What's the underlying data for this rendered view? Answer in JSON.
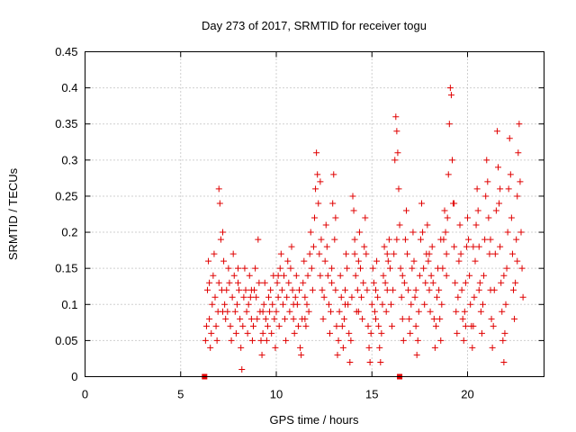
{
  "chart_data": {
    "type": "scatter",
    "title": "Day 273 of 2017, SRMTID for receiver togu",
    "xlabel": "GPS time / hours",
    "ylabel": "SRMTID / TECUs",
    "xlim": [
      0,
      24
    ],
    "ylim": [
      0,
      0.45
    ],
    "xticks": [
      "0",
      "5",
      "10",
      "15",
      "20"
    ],
    "xtick_values": [
      0,
      5,
      10,
      15,
      20
    ],
    "yticks": [
      "0",
      "0.05",
      "0.1",
      "0.15",
      "0.2",
      "0.25",
      "0.3",
      "0.35",
      "0.4",
      "0.45"
    ],
    "ytick_values": [
      0,
      0.05,
      0.1,
      0.15,
      0.2,
      0.25,
      0.3,
      0.35,
      0.4,
      0.45
    ],
    "grid": true,
    "series_color": "#e00000",
    "baseline_markers": [
      6.25,
      16.45
    ],
    "points": [
      [
        6.3,
        0.05
      ],
      [
        6.35,
        0.07
      ],
      [
        6.4,
        0.12
      ],
      [
        6.45,
        0.16
      ],
      [
        6.5,
        0.08
      ],
      [
        6.55,
        0.04
      ],
      [
        6.6,
        0.06
      ],
      [
        6.65,
        0.1
      ],
      [
        6.7,
        0.14
      ],
      [
        6.75,
        0.17
      ],
      [
        6.8,
        0.11
      ],
      [
        6.85,
        0.07
      ],
      [
        6.9,
        0.05
      ],
      [
        6.95,
        0.09
      ],
      [
        7.0,
        0.13
      ],
      [
        7.0,
        0.26
      ],
      [
        7.05,
        0.24
      ],
      [
        7.1,
        0.19
      ],
      [
        7.15,
        0.12
      ],
      [
        7.2,
        0.2
      ],
      [
        7.25,
        0.16
      ],
      [
        7.3,
        0.1
      ],
      [
        7.35,
        0.08
      ],
      [
        7.4,
        0.12
      ],
      [
        7.45,
        0.09
      ],
      [
        7.5,
        0.15
      ],
      [
        7.55,
        0.13
      ],
      [
        7.6,
        0.07
      ],
      [
        7.65,
        0.05
      ],
      [
        7.7,
        0.11
      ],
      [
        7.75,
        0.17
      ],
      [
        7.8,
        0.14
      ],
      [
        7.85,
        0.09
      ],
      [
        7.9,
        0.06
      ],
      [
        7.95,
        0.1
      ],
      [
        8.0,
        0.13
      ],
      [
        8.05,
        0.12
      ],
      [
        8.1,
        0.08
      ],
      [
        8.15,
        0.04
      ],
      [
        8.2,
        0.01
      ],
      [
        8.25,
        0.07
      ],
      [
        8.3,
        0.11
      ],
      [
        8.35,
        0.15
      ],
      [
        8.4,
        0.12
      ],
      [
        8.45,
        0.09
      ],
      [
        8.5,
        0.06
      ],
      [
        8.55,
        0.1
      ],
      [
        8.6,
        0.14
      ],
      [
        8.65,
        0.11
      ],
      [
        8.7,
        0.08
      ],
      [
        8.75,
        0.05
      ],
      [
        8.8,
        0.07
      ],
      [
        8.85,
        0.12
      ],
      [
        8.9,
        0.15
      ],
      [
        8.95,
        0.11
      ],
      [
        9.0,
        0.08
      ],
      [
        9.05,
        0.19
      ],
      [
        9.1,
        0.13
      ],
      [
        9.15,
        0.09
      ],
      [
        9.2,
        0.05
      ],
      [
        9.25,
        0.03
      ],
      [
        9.3,
        0.06
      ],
      [
        9.35,
        0.1
      ],
      [
        9.4,
        0.13
      ],
      [
        9.45,
        0.08
      ],
      [
        9.5,
        0.05
      ],
      [
        9.55,
        0.07
      ],
      [
        9.6,
        0.11
      ],
      [
        9.65,
        0.09
      ],
      [
        9.7,
        0.12
      ],
      [
        9.75,
        0.06
      ],
      [
        9.8,
        0.1
      ],
      [
        9.85,
        0.14
      ],
      [
        9.9,
        0.08
      ],
      [
        9.95,
        0.04
      ],
      [
        10.0,
        0.09
      ],
      [
        10.05,
        0.13
      ],
      [
        10.1,
        0.11
      ],
      [
        10.15,
        0.07
      ],
      [
        10.2,
        0.15
      ],
      [
        10.25,
        0.17
      ],
      [
        10.3,
        0.12
      ],
      [
        10.35,
        0.1
      ],
      [
        10.4,
        0.14
      ],
      [
        10.45,
        0.08
      ],
      [
        10.5,
        0.05
      ],
      [
        10.55,
        0.11
      ],
      [
        10.6,
        0.16
      ],
      [
        10.65,
        0.13
      ],
      [
        10.7,
        0.09
      ],
      [
        10.75,
        0.15
      ],
      [
        10.8,
        0.18
      ],
      [
        10.85,
        0.12
      ],
      [
        10.9,
        0.08
      ],
      [
        10.95,
        0.06
      ],
      [
        11.0,
        0.11
      ],
      [
        11.05,
        0.14
      ],
      [
        11.1,
        0.1
      ],
      [
        11.15,
        0.07
      ],
      [
        11.2,
        0.12
      ],
      [
        11.25,
        0.04
      ],
      [
        11.3,
        0.03
      ],
      [
        11.35,
        0.08
      ],
      [
        11.4,
        0.13
      ],
      [
        11.45,
        0.16
      ],
      [
        11.5,
        0.11
      ],
      [
        11.55,
        0.07
      ],
      [
        11.6,
        0.1
      ],
      [
        11.65,
        0.14
      ],
      [
        11.7,
        0.09
      ],
      [
        11.75,
        0.17
      ],
      [
        11.8,
        0.2
      ],
      [
        11.85,
        0.15
      ],
      [
        11.9,
        0.12
      ],
      [
        11.95,
        0.18
      ],
      [
        12.0,
        0.22
      ],
      [
        12.05,
        0.26
      ],
      [
        12.1,
        0.31
      ],
      [
        12.15,
        0.28
      ],
      [
        12.2,
        0.24
      ],
      [
        12.25,
        0.17
      ],
      [
        12.3,
        0.14
      ],
      [
        12.35,
        0.19
      ],
      [
        12.4,
        0.12
      ],
      [
        12.45,
        0.08
      ],
      [
        12.5,
        0.11
      ],
      [
        12.55,
        0.16
      ],
      [
        12.6,
        0.21
      ],
      [
        12.65,
        0.18
      ],
      [
        12.7,
        0.14
      ],
      [
        12.75,
        0.1
      ],
      [
        12.8,
        0.06
      ],
      [
        12.85,
        0.09
      ],
      [
        12.9,
        0.13
      ],
      [
        12.95,
        0.24
      ],
      [
        13.0,
        0.28
      ],
      [
        13.05,
        0.19
      ],
      [
        13.1,
        0.12
      ],
      [
        13.15,
        0.07
      ],
      [
        13.2,
        0.03
      ],
      [
        13.25,
        0.05
      ],
      [
        13.3,
        0.09
      ],
      [
        13.35,
        0.14
      ],
      [
        13.4,
        0.11
      ],
      [
        13.45,
        0.07
      ],
      [
        13.5,
        0.04
      ],
      [
        13.55,
        0.08
      ],
      [
        13.6,
        0.12
      ],
      [
        13.65,
        0.17
      ],
      [
        13.7,
        0.15
      ],
      [
        13.75,
        0.1
      ],
      [
        13.8,
        0.06
      ],
      [
        13.85,
        0.02
      ],
      [
        13.9,
        0.05
      ],
      [
        13.95,
        0.11
      ],
      [
        14.0,
        0.25
      ],
      [
        14.05,
        0.23
      ],
      [
        14.1,
        0.19
      ],
      [
        14.15,
        0.14
      ],
      [
        14.2,
        0.09
      ],
      [
        14.25,
        0.12
      ],
      [
        14.3,
        0.16
      ],
      [
        14.35,
        0.2
      ],
      [
        14.4,
        0.15
      ],
      [
        14.45,
        0.11
      ],
      [
        14.5,
        0.08
      ],
      [
        14.55,
        0.13
      ],
      [
        14.6,
        0.18
      ],
      [
        14.65,
        0.22
      ],
      [
        14.7,
        0.17
      ],
      [
        14.75,
        0.12
      ],
      [
        14.8,
        0.07
      ],
      [
        14.85,
        0.04
      ],
      [
        14.9,
        0.02
      ],
      [
        14.95,
        0.06
      ],
      [
        15.0,
        0.1
      ],
      [
        15.05,
        0.15
      ],
      [
        15.1,
        0.13
      ],
      [
        15.15,
        0.09
      ],
      [
        15.2,
        0.12
      ],
      [
        15.25,
        0.16
      ],
      [
        15.3,
        0.11
      ],
      [
        15.35,
        0.07
      ],
      [
        15.4,
        0.04
      ],
      [
        15.45,
        0.02
      ],
      [
        15.5,
        0.06
      ],
      [
        15.55,
        0.1
      ],
      [
        15.6,
        0.14
      ],
      [
        15.65,
        0.18
      ],
      [
        15.7,
        0.13
      ],
      [
        15.75,
        0.09
      ],
      [
        15.8,
        0.12
      ],
      [
        15.85,
        0.16
      ],
      [
        15.9,
        0.19
      ],
      [
        15.95,
        0.15
      ],
      [
        16.0,
        0.1
      ],
      [
        16.05,
        0.07
      ],
      [
        16.1,
        0.12
      ],
      [
        16.15,
        0.17
      ],
      [
        16.2,
        0.3
      ],
      [
        16.25,
        0.36
      ],
      [
        16.3,
        0.34
      ],
      [
        16.35,
        0.31
      ],
      [
        16.4,
        0.26
      ],
      [
        16.45,
        0.21
      ],
      [
        16.5,
        0.15
      ],
      [
        16.55,
        0.11
      ],
      [
        16.6,
        0.08
      ],
      [
        16.65,
        0.05
      ],
      [
        16.7,
        0.13
      ],
      [
        16.75,
        0.19
      ],
      [
        16.8,
        0.23
      ],
      [
        16.85,
        0.17
      ],
      [
        16.9,
        0.12
      ],
      [
        16.95,
        0.08
      ],
      [
        17.0,
        0.06
      ],
      [
        17.05,
        0.1
      ],
      [
        17.1,
        0.15
      ],
      [
        17.15,
        0.2
      ],
      [
        17.2,
        0.16
      ],
      [
        17.25,
        0.11
      ],
      [
        17.3,
        0.07
      ],
      [
        17.35,
        0.03
      ],
      [
        17.4,
        0.05
      ],
      [
        17.45,
        0.09
      ],
      [
        17.5,
        0.14
      ],
      [
        17.55,
        0.19
      ],
      [
        17.6,
        0.24
      ],
      [
        17.65,
        0.2
      ],
      [
        17.7,
        0.15
      ],
      [
        17.75,
        0.1
      ],
      [
        17.8,
        0.13
      ],
      [
        17.85,
        0.17
      ],
      [
        17.9,
        0.21
      ],
      [
        17.95,
        0.16
      ],
      [
        18.0,
        0.12
      ],
      [
        18.05,
        0.09
      ],
      [
        18.1,
        0.14
      ],
      [
        18.15,
        0.18
      ],
      [
        18.2,
        0.13
      ],
      [
        18.25,
        0.08
      ],
      [
        18.3,
        0.04
      ],
      [
        18.35,
        0.07
      ],
      [
        18.4,
        0.11
      ],
      [
        18.45,
        0.15
      ],
      [
        18.5,
        0.12
      ],
      [
        18.55,
        0.08
      ],
      [
        18.6,
        0.05
      ],
      [
        18.65,
        0.1
      ],
      [
        18.7,
        0.15
      ],
      [
        18.75,
        0.19
      ],
      [
        18.8,
        0.23
      ],
      [
        18.85,
        0.2
      ],
      [
        18.9,
        0.17
      ],
      [
        18.95,
        0.22
      ],
      [
        19.0,
        0.28
      ],
      [
        19.05,
        0.35
      ],
      [
        19.1,
        0.4
      ],
      [
        19.15,
        0.39
      ],
      [
        19.2,
        0.3
      ],
      [
        19.25,
        0.24
      ],
      [
        19.3,
        0.18
      ],
      [
        19.35,
        0.13
      ],
      [
        19.4,
        0.09
      ],
      [
        19.45,
        0.06
      ],
      [
        19.5,
        0.11
      ],
      [
        19.55,
        0.16
      ],
      [
        19.6,
        0.21
      ],
      [
        19.65,
        0.17
      ],
      [
        19.7,
        0.12
      ],
      [
        19.75,
        0.08
      ],
      [
        19.8,
        0.05
      ],
      [
        19.85,
        0.09
      ],
      [
        19.9,
        0.13
      ],
      [
        19.95,
        0.18
      ],
      [
        20.0,
        0.22
      ],
      [
        20.05,
        0.19
      ],
      [
        20.1,
        0.14
      ],
      [
        20.15,
        0.1
      ],
      [
        20.2,
        0.07
      ],
      [
        20.25,
        0.04
      ],
      [
        20.3,
        0.07
      ],
      [
        20.35,
        0.11
      ],
      [
        20.4,
        0.16
      ],
      [
        20.45,
        0.21
      ],
      [
        20.5,
        0.26
      ],
      [
        20.55,
        0.23
      ],
      [
        20.6,
        0.18
      ],
      [
        20.65,
        0.13
      ],
      [
        20.7,
        0.09
      ],
      [
        20.75,
        0.06
      ],
      [
        20.8,
        0.1
      ],
      [
        20.85,
        0.14
      ],
      [
        20.9,
        0.19
      ],
      [
        20.95,
        0.25
      ],
      [
        21.0,
        0.3
      ],
      [
        21.05,
        0.27
      ],
      [
        21.1,
        0.22
      ],
      [
        21.15,
        0.17
      ],
      [
        21.2,
        0.12
      ],
      [
        21.25,
        0.08
      ],
      [
        21.3,
        0.04
      ],
      [
        21.35,
        0.07
      ],
      [
        21.4,
        0.12
      ],
      [
        21.45,
        0.17
      ],
      [
        21.5,
        0.23
      ],
      [
        21.55,
        0.34
      ],
      [
        21.6,
        0.29
      ],
      [
        21.65,
        0.24
      ],
      [
        21.7,
        0.18
      ],
      [
        21.75,
        0.13
      ],
      [
        21.8,
        0.09
      ],
      [
        21.85,
        0.05
      ],
      [
        21.9,
        0.02
      ],
      [
        21.95,
        0.06
      ],
      [
        22.0,
        0.1
      ],
      [
        22.05,
        0.15
      ],
      [
        22.1,
        0.2
      ],
      [
        22.15,
        0.26
      ],
      [
        22.2,
        0.33
      ],
      [
        22.25,
        0.28
      ],
      [
        22.3,
        0.22
      ],
      [
        22.35,
        0.17
      ],
      [
        22.4,
        0.12
      ],
      [
        22.45,
        0.08
      ],
      [
        22.5,
        0.13
      ],
      [
        22.55,
        0.19
      ],
      [
        22.6,
        0.25
      ],
      [
        22.65,
        0.31
      ],
      [
        22.7,
        0.35
      ],
      [
        22.75,
        0.27
      ],
      [
        22.8,
        0.2
      ],
      [
        22.85,
        0.15
      ],
      [
        22.9,
        0.11
      ],
      [
        6.5,
        0.13
      ],
      [
        7.2,
        0.09
      ],
      [
        8.0,
        0.15
      ],
      [
        8.7,
        0.12
      ],
      [
        9.3,
        0.09
      ],
      [
        10.1,
        0.14
      ],
      [
        10.9,
        0.1
      ],
      [
        11.5,
        0.08
      ],
      [
        12.3,
        0.27
      ],
      [
        12.9,
        0.15
      ],
      [
        13.6,
        0.1
      ],
      [
        14.3,
        0.09
      ],
      [
        15.2,
        0.08
      ],
      [
        15.8,
        0.17
      ],
      [
        16.6,
        0.14
      ],
      [
        17.3,
        0.12
      ],
      [
        18.0,
        0.17
      ],
      [
        18.6,
        0.19
      ],
      [
        19.3,
        0.24
      ],
      [
        19.9,
        0.07
      ],
      [
        20.6,
        0.12
      ],
      [
        21.2,
        0.19
      ],
      [
        21.9,
        0.14
      ],
      [
        22.6,
        0.16
      ],
      [
        13.1,
        0.22
      ],
      [
        14.1,
        0.17
      ],
      [
        16.3,
        0.19
      ],
      [
        18.9,
        0.14
      ],
      [
        20.3,
        0.18
      ],
      [
        21.7,
        0.26
      ]
    ]
  }
}
